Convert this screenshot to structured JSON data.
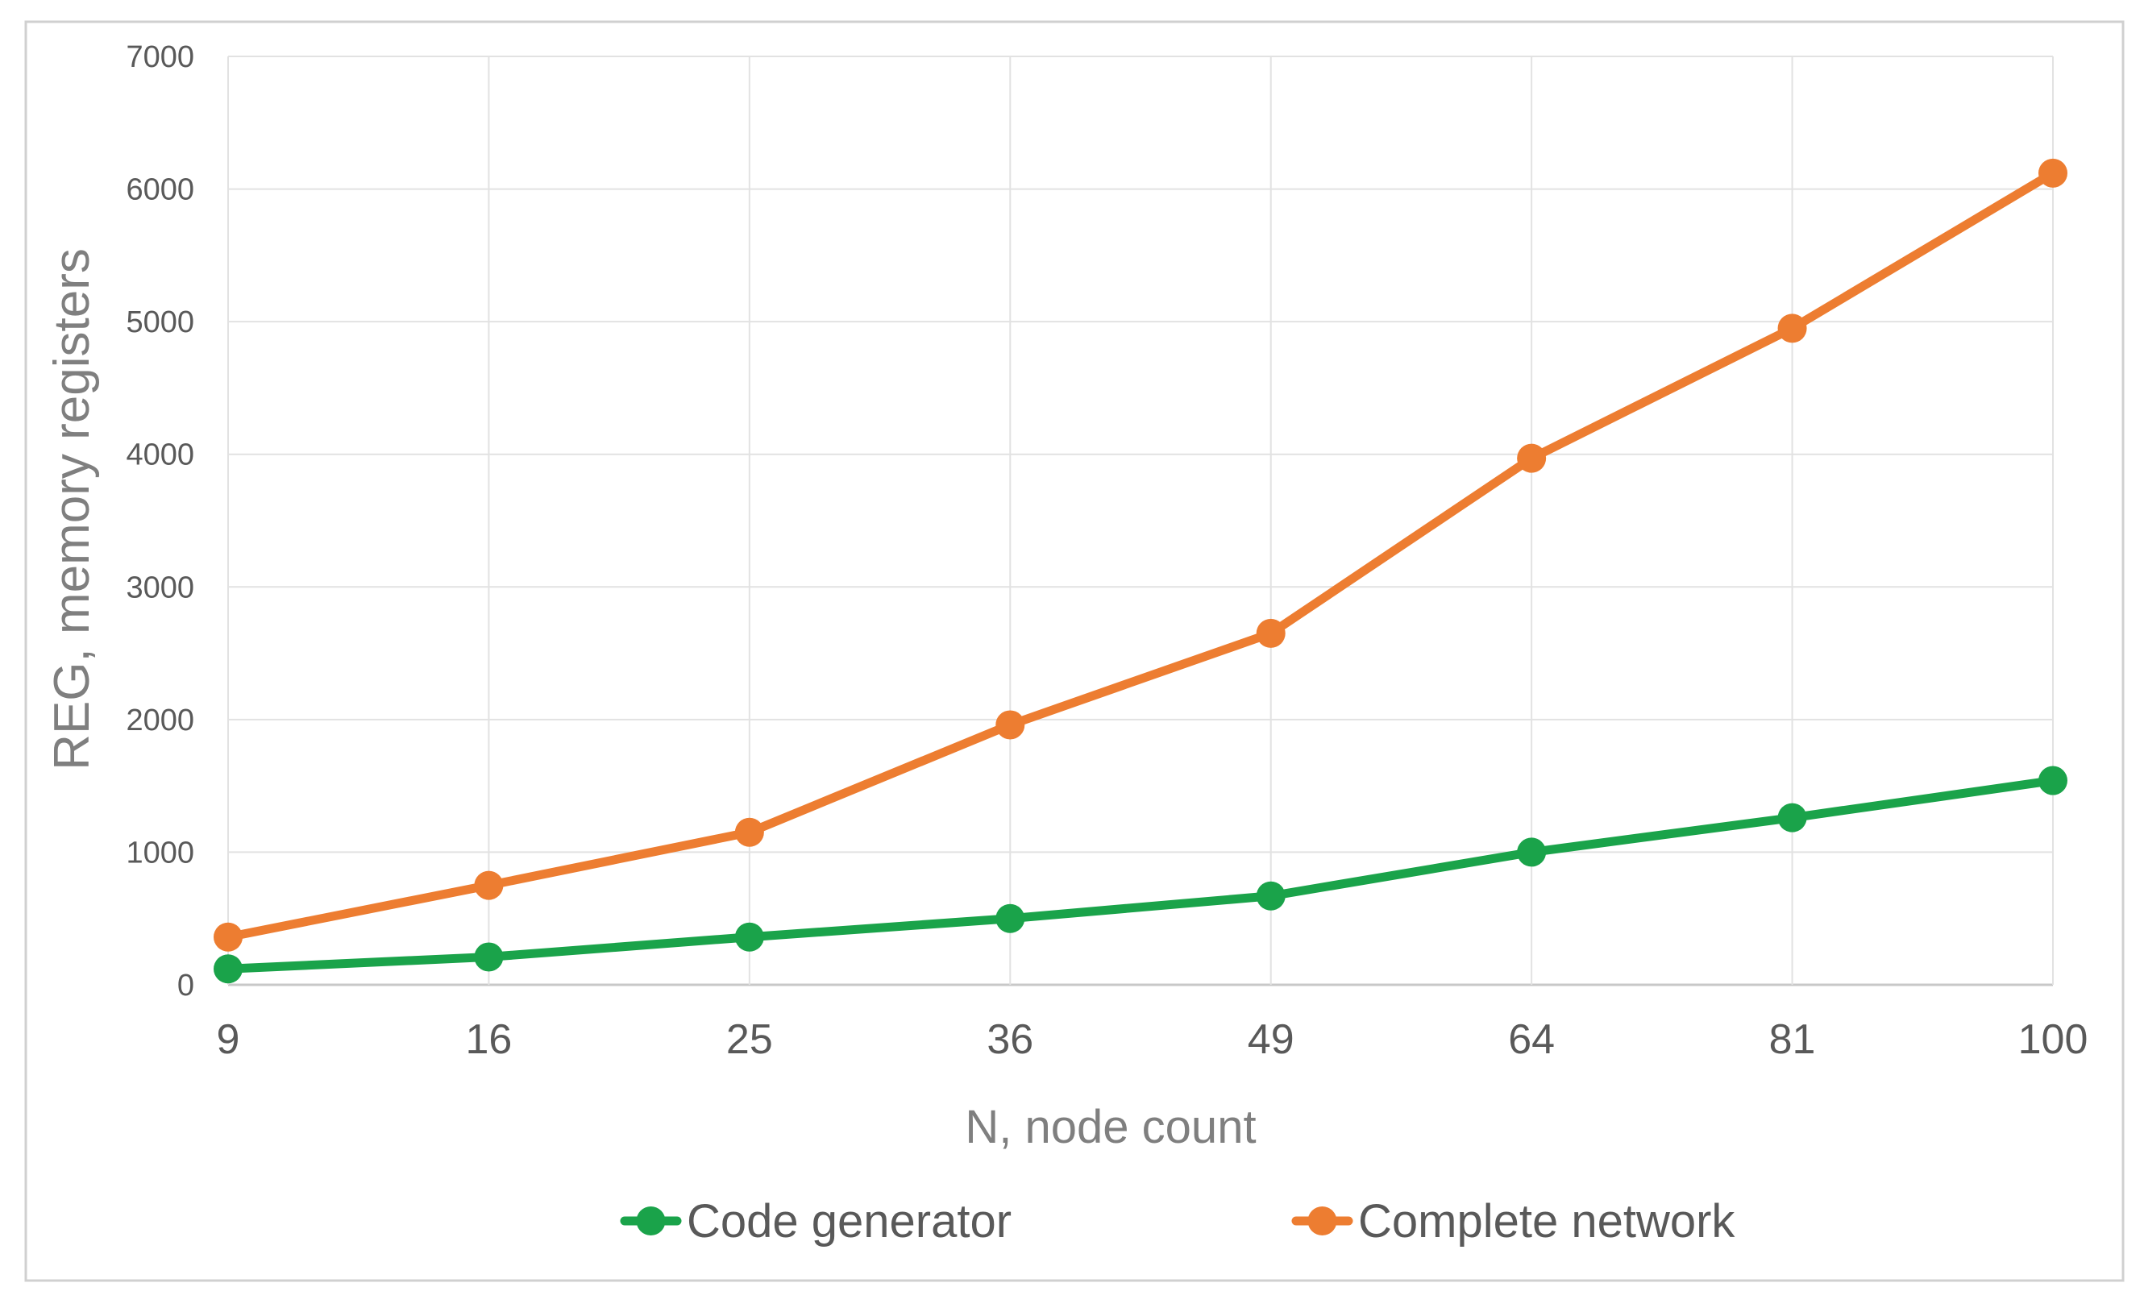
{
  "chart_data": {
    "type": "line",
    "title": "",
    "xlabel": "N, node count",
    "ylabel": "REG, memory registers",
    "categories": [
      "9",
      "16",
      "25",
      "36",
      "49",
      "64",
      "81",
      "100"
    ],
    "ylim": [
      0,
      7000
    ],
    "yticks": [
      "0",
      "1000",
      "2000",
      "3000",
      "4000",
      "5000",
      "6000",
      "7000"
    ],
    "grid": true,
    "legend_position": "bottom",
    "series": [
      {
        "name": "Code generator",
        "color": "#1aa34a",
        "values": [
          120,
          210,
          360,
          500,
          670,
          1000,
          1260,
          1540
        ]
      },
      {
        "name": "Complete network",
        "color": "#ed7d31",
        "values": [
          360,
          750,
          1150,
          1960,
          2650,
          3970,
          4950,
          6120
        ]
      }
    ]
  }
}
